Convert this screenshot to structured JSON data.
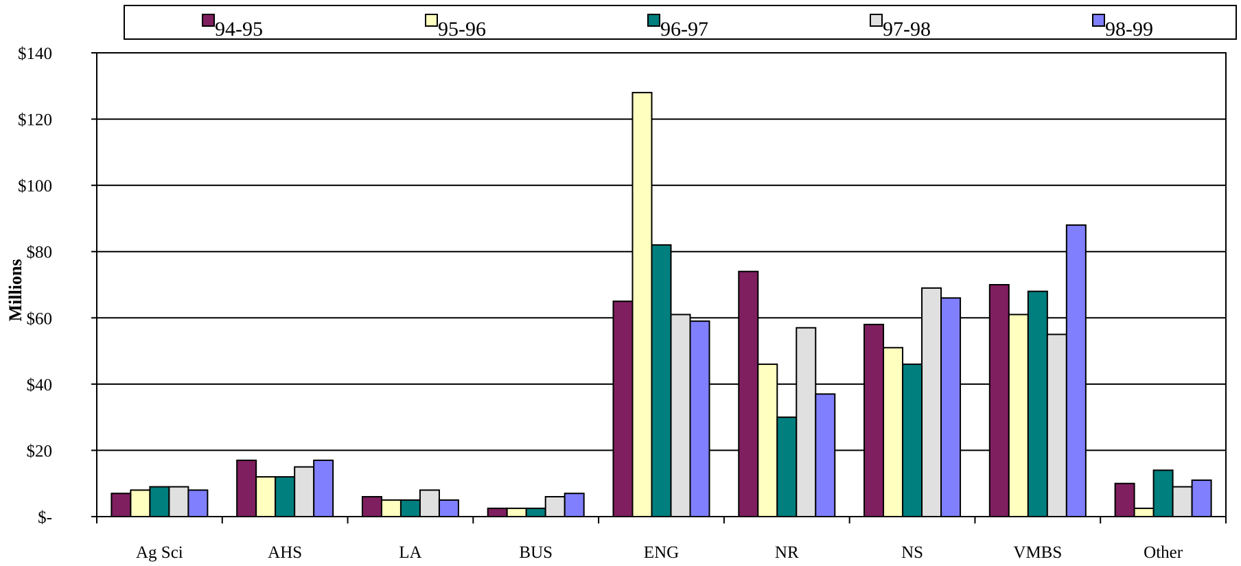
{
  "chart_data": {
    "type": "bar",
    "categories": [
      "Ag Sci",
      "AHS",
      "LA",
      "BUS",
      "ENG",
      "NR",
      "NS",
      "VMBS",
      "Other"
    ],
    "series": [
      {
        "name": "94-95",
        "color": "#7F1F5F",
        "values": [
          7,
          17,
          6,
          2.5,
          65,
          74,
          58,
          70,
          10
        ]
      },
      {
        "name": "95-96",
        "color": "#FFFFC0",
        "values": [
          8,
          12,
          5,
          2.5,
          128,
          46,
          51,
          61,
          2.5
        ]
      },
      {
        "name": "96-97",
        "color": "#007F7F",
        "values": [
          9,
          12,
          5,
          2.5,
          82,
          30,
          46,
          68,
          14
        ]
      },
      {
        "name": "97-98",
        "color": "#E0E0E0",
        "values": [
          9,
          15,
          8,
          6,
          61,
          57,
          69,
          55,
          9
        ]
      },
      {
        "name": "98-99",
        "color": "#8080FF",
        "values": [
          8,
          17,
          5,
          7,
          59,
          37,
          66,
          88,
          11
        ]
      }
    ],
    "title": "",
    "xlabel": "",
    "ylabel": "Millions",
    "ylim": [
      0,
      140
    ],
    "yticks": [
      0,
      20,
      40,
      60,
      80,
      100,
      120,
      140
    ],
    "ytick_labels": [
      "$-",
      "$20",
      "$40",
      "$60",
      "$80",
      "$100",
      "$120",
      "$140"
    ],
    "grid": true,
    "legend_position": "top"
  }
}
